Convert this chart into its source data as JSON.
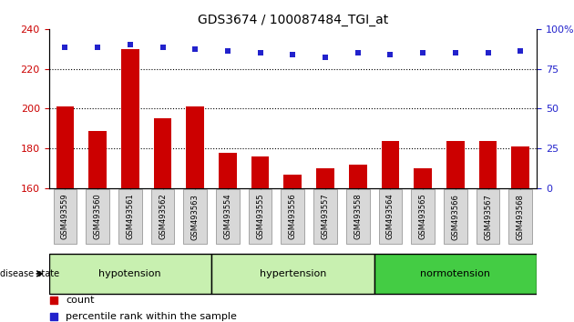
{
  "title": "GDS3674 / 100087484_TGI_at",
  "samples": [
    "GSM493559",
    "GSM493560",
    "GSM493561",
    "GSM493562",
    "GSM493563",
    "GSM493554",
    "GSM493555",
    "GSM493556",
    "GSM493557",
    "GSM493558",
    "GSM493564",
    "GSM493565",
    "GSM493566",
    "GSM493567",
    "GSM493568"
  ],
  "counts": [
    201,
    189,
    230,
    195,
    201,
    178,
    176,
    167,
    170,
    172,
    184,
    170,
    184,
    184,
    181
  ],
  "percentile_left_y": [
    231,
    231,
    232,
    231,
    230,
    229,
    228,
    227,
    226,
    228,
    227,
    228,
    228,
    228,
    229
  ],
  "groups": [
    {
      "label": "hypotension",
      "start": 0,
      "end": 5
    },
    {
      "label": "hypertension",
      "start": 5,
      "end": 10
    },
    {
      "label": "normotension",
      "start": 10,
      "end": 15
    }
  ],
  "group_colors": [
    "#c8f0b0",
    "#c8f0b0",
    "#44cc44"
  ],
  "ylim_left": [
    160,
    240
  ],
  "ylim_right": [
    0,
    100
  ],
  "yticks_left": [
    160,
    180,
    200,
    220,
    240
  ],
  "yticks_right": [
    0,
    25,
    50,
    75,
    100
  ],
  "ytick_right_labels": [
    "0",
    "25",
    "50",
    "75",
    "100%"
  ],
  "bar_color": "#cc0000",
  "dot_color": "#2222cc",
  "grid_color": "#000000",
  "label_count": "count",
  "label_percentile": "percentile rank within the sample",
  "disease_state_label": "disease state"
}
